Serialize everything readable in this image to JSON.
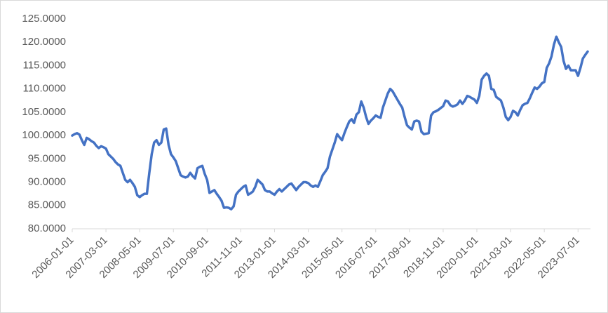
{
  "chart_data": {
    "type": "line",
    "categories": [
      "2006-01-01",
      null,
      null,
      null,
      null,
      null,
      null,
      null,
      null,
      null,
      null,
      null,
      null,
      null,
      "2007-03-01",
      null,
      null,
      null,
      null,
      null,
      null,
      null,
      null,
      null,
      null,
      null,
      null,
      null,
      "2008-05-01",
      null,
      null,
      null,
      null,
      null,
      null,
      null,
      null,
      null,
      null,
      null,
      null,
      null,
      "2009-07-01",
      null,
      null,
      null,
      null,
      null,
      null,
      null,
      null,
      null,
      null,
      null,
      null,
      null,
      "2010-09-01",
      null,
      null,
      null,
      null,
      null,
      null,
      null,
      null,
      null,
      null,
      null,
      null,
      null,
      "2011-11-01",
      null,
      null,
      null,
      null,
      null,
      null,
      null,
      null,
      null,
      null,
      null,
      null,
      null,
      "2013-01-01",
      null,
      null,
      null,
      null,
      null,
      null,
      null,
      null,
      null,
      null,
      null,
      null,
      null,
      "2014-03-01",
      null,
      null,
      null,
      null,
      null,
      null,
      null,
      null,
      null,
      null,
      null,
      null,
      null,
      "2015-05-01",
      null,
      null,
      null,
      null,
      null,
      null,
      null,
      null,
      null,
      null,
      null,
      null,
      null,
      "2016-07-01",
      null,
      null,
      null,
      null,
      null,
      null,
      null,
      null,
      null,
      null,
      null,
      null,
      null,
      "2017-09-01",
      null,
      null,
      null,
      null,
      null,
      null,
      null,
      null,
      null,
      null,
      null,
      null,
      null,
      "2018-11-01",
      null,
      null,
      null,
      null,
      null,
      null,
      null,
      null,
      null,
      null,
      null,
      null,
      null,
      "2020-01-01",
      null,
      null,
      null,
      null,
      null,
      null,
      null,
      null,
      null,
      null,
      null,
      null,
      null,
      "2021-03-01",
      null,
      null,
      null,
      null,
      null,
      null,
      null,
      null,
      null,
      null,
      null,
      null,
      null,
      "2022-05-01",
      null,
      null,
      null,
      null,
      null,
      null,
      null,
      null,
      null,
      null,
      null,
      null,
      null,
      "2023-07-01",
      null,
      null,
      null,
      null
    ],
    "values": [
      100.0,
      100.3,
      100.5,
      100.2,
      99.0,
      98.0,
      99.5,
      99.2,
      98.8,
      98.5,
      97.8,
      97.3,
      97.7,
      97.5,
      97.2,
      96.0,
      95.5,
      95.0,
      94.3,
      93.8,
      93.5,
      92.0,
      90.5,
      90.0,
      90.5,
      89.8,
      89.0,
      87.2,
      86.8,
      87.2,
      87.5,
      87.5,
      92.0,
      96.0,
      98.5,
      99.0,
      98.0,
      98.5,
      101.3,
      101.5,
      98.0,
      96.0,
      95.3,
      94.5,
      93.0,
      91.5,
      91.2,
      91.0,
      91.2,
      92.0,
      91.3,
      90.8,
      93.0,
      93.3,
      93.5,
      91.8,
      90.5,
      87.7,
      88.0,
      88.3,
      87.5,
      86.8,
      86.0,
      84.5,
      84.6,
      84.5,
      84.2,
      84.8,
      87.3,
      88.0,
      88.5,
      89.0,
      89.3,
      87.3,
      87.6,
      88.0,
      89.0,
      90.5,
      90.0,
      89.5,
      88.3,
      88.0,
      88.0,
      87.6,
      87.3,
      88.0,
      88.5,
      88.0,
      88.5,
      89.0,
      89.5,
      89.7,
      89.0,
      88.3,
      89.0,
      89.5,
      90.0,
      90.0,
      89.8,
      89.3,
      89.0,
      89.3,
      89.0,
      90.2,
      91.5,
      92.2,
      93.0,
      95.5,
      97.0,
      98.5,
      100.3,
      99.6,
      99.0,
      100.5,
      101.8,
      103.0,
      103.5,
      102.7,
      104.5,
      105.0,
      107.3,
      106.0,
      104.0,
      102.5,
      103.2,
      103.7,
      104.3,
      104.0,
      103.8,
      106.0,
      107.5,
      109.0,
      110.0,
      109.5,
      108.6,
      107.7,
      106.8,
      106.0,
      104.0,
      102.2,
      101.7,
      101.3,
      103.0,
      103.2,
      103.0,
      100.8,
      100.3,
      100.4,
      100.5,
      104.3,
      105.0,
      105.2,
      105.5,
      105.9,
      106.3,
      107.5,
      107.3,
      106.5,
      106.2,
      106.4,
      106.7,
      107.5,
      106.8,
      107.5,
      108.5,
      108.3,
      108.0,
      107.7,
      107.0,
      108.5,
      112.0,
      112.8,
      113.3,
      112.8,
      110.0,
      109.8,
      108.3,
      107.9,
      107.5,
      106.0,
      104.0,
      103.3,
      104.0,
      105.3,
      105.0,
      104.3,
      105.5,
      106.5,
      106.8,
      107.0,
      108.0,
      109.2,
      110.3,
      110.0,
      110.5,
      111.2,
      111.5,
      114.5,
      115.5,
      117.0,
      119.5,
      121.2,
      120.0,
      119.0,
      116.0,
      114.3,
      115.0,
      114.0,
      114.0,
      114.0,
      112.8,
      114.5,
      116.5,
      117.3,
      118.0
    ],
    "color": "#4472c4",
    "ylim": [
      80,
      125
    ],
    "yticks": [
      {
        "value": 80,
        "label": "80.0000"
      },
      {
        "value": 85,
        "label": "85.0000"
      },
      {
        "value": 90,
        "label": "90.0000"
      },
      {
        "value": 95,
        "label": "95.0000"
      },
      {
        "value": 100,
        "label": "100.0000"
      },
      {
        "value": 105,
        "label": "105.0000"
      },
      {
        "value": 110,
        "label": "110.0000"
      },
      {
        "value": 115,
        "label": "115.0000"
      },
      {
        "value": 120,
        "label": "120.0000"
      },
      {
        "value": 125,
        "label": "125.0000"
      }
    ],
    "grid": false
  }
}
